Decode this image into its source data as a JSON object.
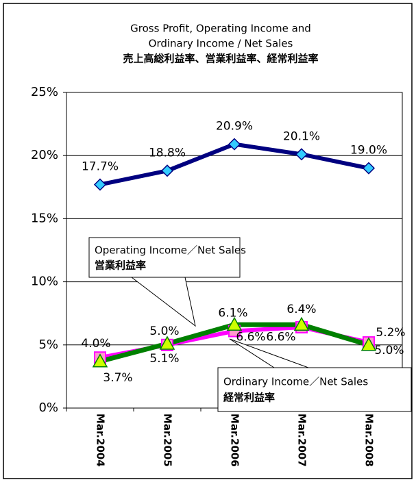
{
  "chart_data": {
    "type": "line",
    "title": [
      "Gross Profit, Operating Income and",
      "Ordinary Income / Net Sales",
      "売上高総利益率、営業利益率、経常利益率"
    ],
    "categories": [
      "Mar.2004",
      "Mar.2005",
      "Mar.2006",
      "Mar.2007",
      "Mar.2008"
    ],
    "series": [
      {
        "color": "#000080",
        "marker": "diamond",
        "marker_color": "#33ccff",
        "values": [
          17.7,
          18.8,
          20.9,
          20.1,
          19.0
        ],
        "value_labels": [
          "17.7%",
          "18.8%",
          "20.9%",
          "20.1%",
          "19.0%"
        ]
      },
      {
        "color": "#ff00ff",
        "marker": "square",
        "marker_color": "#ff99cc",
        "values": [
          4.0,
          5.0,
          6.1,
          6.4,
          5.2
        ],
        "value_labels": [
          "4.0%",
          "5.0%",
          "6.1%",
          "6.4%",
          "5.2%"
        ]
      },
      {
        "color": "#008000",
        "marker": "triangle",
        "marker_color": "#ccff00",
        "values": [
          3.7,
          5.1,
          6.6,
          6.6,
          5.0
        ],
        "value_labels": [
          "3.7%",
          "5.1%",
          "6.6%",
          "6.6%",
          "5.0%"
        ]
      }
    ],
    "annotations": [
      {
        "text": "Operating Income／Net Sales",
        "subtext": "営業利益率"
      },
      {
        "text": "Ordinary Income／Net Sales",
        "subtext": "経常利益率"
      }
    ],
    "ylim": [
      0,
      25
    ],
    "yticks": [
      {
        "value": 0,
        "label": "0%"
      },
      {
        "value": 5,
        "label": "5%"
      },
      {
        "value": 10,
        "label": "10%"
      },
      {
        "value": 15,
        "label": "15%"
      },
      {
        "value": 20,
        "label": "20%"
      },
      {
        "value": 25,
        "label": "25%"
      }
    ],
    "grid": true
  }
}
